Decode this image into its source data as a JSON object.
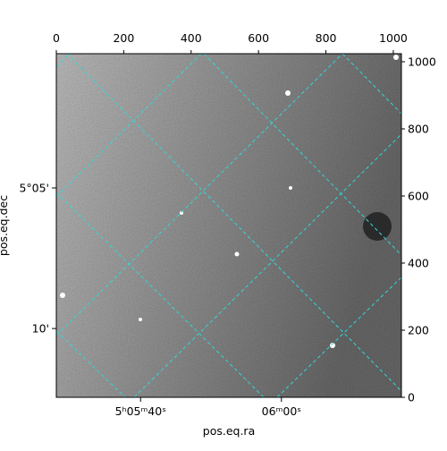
{
  "chart_data": {
    "type": "image",
    "xlabel": "pos.eq.ra",
    "ylabel": "pos.eq.dec",
    "xlim": [
      0,
      1024
    ],
    "ylim": [
      0,
      1024
    ],
    "xticks": [
      0,
      200,
      400,
      600,
      800,
      1000
    ],
    "yticks": [
      0,
      200,
      400,
      600,
      800,
      1000
    ],
    "ra_ticks": [
      {
        "value": 250,
        "label": "5ʰ05ᵐ40ˢ"
      },
      {
        "value": 668,
        "label": "06ᵐ00ˢ"
      }
    ],
    "dec_ticks": [
      {
        "value": 624,
        "label": "5°05'"
      },
      {
        "value": 205,
        "label": "10'"
      }
    ]
  }
}
